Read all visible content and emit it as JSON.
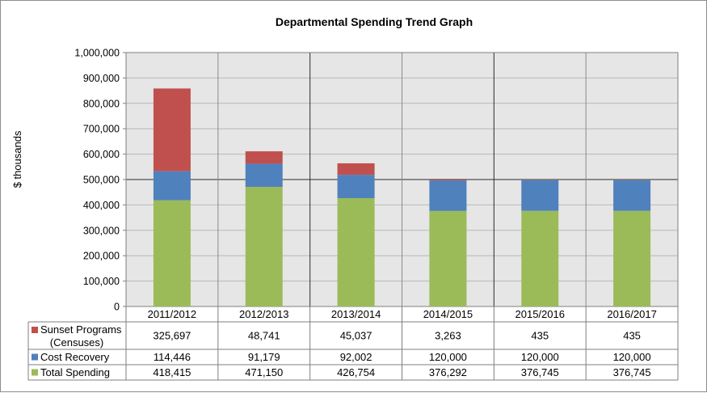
{
  "chart_data": {
    "type": "bar",
    "stacked": true,
    "title": "Departmental Spending Trend  Graph",
    "ylabel": "$ thousands",
    "xlabel": "",
    "ylim": [
      0,
      1000000
    ],
    "yticks": [
      "0",
      "100,000",
      "200,000",
      "300,000",
      "400,000",
      "500,000",
      "600,000",
      "700,000",
      "800,000",
      "900,000",
      "1,000,000"
    ],
    "categories": [
      "2011/2012",
      "2012/2013",
      "2013/2014",
      "2014/2015",
      "2015/2016",
      "2016/2017"
    ],
    "grid": true,
    "legend": "data-table-left",
    "series": [
      {
        "key": "total",
        "name": "Total Spending",
        "color": "#9bbb59",
        "values": [
          418415,
          471150,
          426754,
          376292,
          376745,
          376745
        ],
        "labels": [
          "418,415",
          "471,150",
          "426,754",
          "376,292",
          "376,745",
          "376,745"
        ]
      },
      {
        "key": "cost",
        "name": "Cost Recovery",
        "color": "#4f81bd",
        "values": [
          114446,
          91179,
          92002,
          120000,
          120000,
          120000
        ],
        "labels": [
          "114,446",
          "91,179",
          "92,002",
          "120,000",
          "120,000",
          "120,000"
        ]
      },
      {
        "key": "sunset",
        "name": "Sunset Programs (Censuses)",
        "name_lines": [
          "Sunset Programs",
          "(Censuses)"
        ],
        "color": "#c0504d",
        "values": [
          325697,
          48741,
          45037,
          3263,
          435,
          435
        ],
        "labels": [
          "325,697",
          "48,741",
          "45,037",
          "3,263",
          "435",
          "435"
        ]
      }
    ]
  }
}
